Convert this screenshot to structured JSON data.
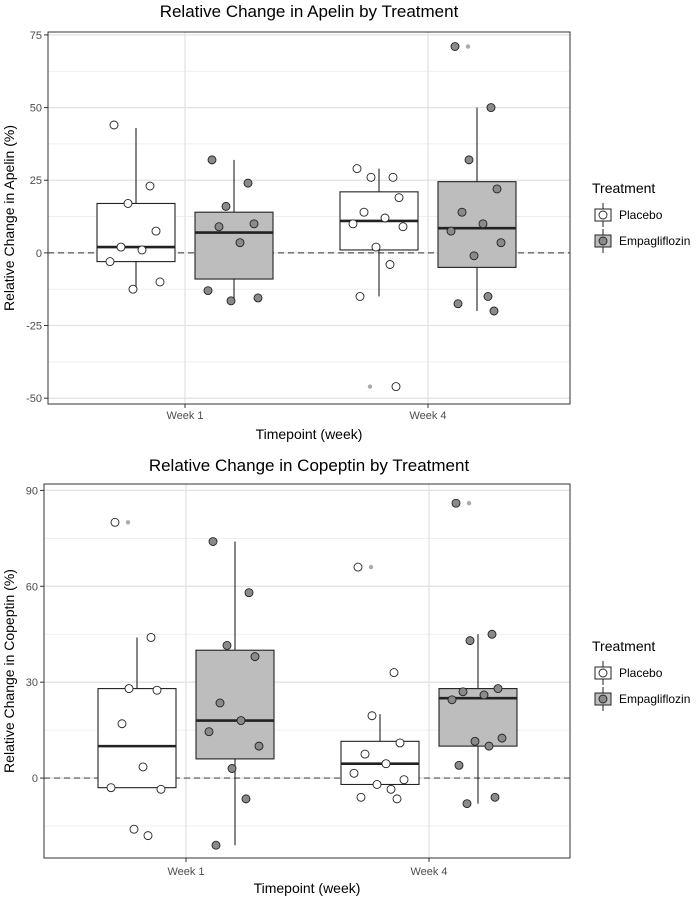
{
  "chart_data": [
    {
      "type": "boxplot",
      "title": "Relative Change in Apelin by Treatment",
      "xlabel": "Timepoint (week)",
      "ylabel": "Relative Change in Apelin (%)",
      "categories": [
        "Week 1",
        "Week 4"
      ],
      "ylim": [
        -52,
        76
      ],
      "yticks": [
        -50,
        -25,
        0,
        25,
        50,
        75
      ],
      "reference_line": 0,
      "legend": {
        "title": "Treatment",
        "entries": [
          "Placebo",
          "Empagliflozin"
        ]
      },
      "series": [
        {
          "name": "Placebo",
          "color": "#ffffff",
          "boxes": [
            {
              "category": "Week 1",
              "whisker_low": -13,
              "q1": -3,
              "median": 2,
              "q3": 17,
              "whisker_high": 43,
              "outliers": []
            },
            {
              "category": "Week 4",
              "whisker_low": -15,
              "q1": 1,
              "median": 11,
              "q3": 21,
              "whisker_high": 29,
              "outliers": [
                -46
              ]
            }
          ],
          "points": [
            {
              "category": "Week 1",
              "values": [
                44,
                23,
                17,
                7.5,
                2,
                1,
                -3,
                -10,
                -12.5
              ]
            },
            {
              "category": "Week 4",
              "values": [
                29,
                26,
                26,
                19,
                14,
                12,
                10,
                9,
                2,
                -4,
                -15,
                -46
              ]
            }
          ]
        },
        {
          "name": "Empagliflozin",
          "color": "#bdbdbd",
          "boxes": [
            {
              "category": "Week 1",
              "whisker_low": -16,
              "q1": -9,
              "median": 7,
              "q3": 14,
              "whisker_high": 32,
              "outliers": []
            },
            {
              "category": "Week 4",
              "whisker_low": -20,
              "q1": -5,
              "median": 8.5,
              "q3": 24.5,
              "whisker_high": 50,
              "outliers": [
                71
              ]
            }
          ],
          "points": [
            {
              "category": "Week 1",
              "values": [
                32,
                24,
                16,
                10,
                9,
                3.5,
                -13,
                -15.5,
                -16.5
              ]
            },
            {
              "category": "Week 4",
              "values": [
                71,
                50,
                32,
                22,
                14,
                10,
                7.5,
                3.5,
                -1,
                -15,
                -17.5,
                -20
              ]
            }
          ]
        }
      ]
    },
    {
      "type": "boxplot",
      "title": "Relative Change in Copeptin by Treatment",
      "xlabel": "Timepoint (week)",
      "ylabel": "Relative Change in Copeptin (%)",
      "categories": [
        "Week 1",
        "Week 4"
      ],
      "ylim": [
        -25,
        92
      ],
      "yticks": [
        0,
        30,
        60,
        90
      ],
      "reference_line": 0,
      "legend": {
        "title": "Treatment",
        "entries": [
          "Placebo",
          "Empagliflozin"
        ]
      },
      "series": [
        {
          "name": "Placebo",
          "color": "#ffffff",
          "boxes": [
            {
              "category": "Week 1",
              "whisker_low": -3,
              "q1": -3,
              "median": 10,
              "q3": 28,
              "whisker_high": 44,
              "outliers": [
                80
              ]
            },
            {
              "category": "Week 4",
              "whisker_low": -2,
              "q1": -2,
              "median": 4.5,
              "q3": 11.5,
              "whisker_high": 20,
              "outliers": [
                66
              ]
            }
          ],
          "points": [
            {
              "category": "Week 1",
              "values": [
                80,
                44,
                28,
                27.5,
                17,
                3.5,
                -3,
                -3.5,
                -16,
                -18
              ]
            },
            {
              "category": "Week 4",
              "values": [
                66,
                33,
                19.5,
                11,
                7.5,
                4.5,
                1.5,
                -0.5,
                -2,
                -3.5,
                -6,
                -6.5
              ]
            }
          ]
        },
        {
          "name": "Empagliflozin",
          "color": "#bdbdbd",
          "boxes": [
            {
              "category": "Week 1",
              "whisker_low": -21,
              "q1": 6,
              "median": 18,
              "q3": 40,
              "whisker_high": 74,
              "outliers": []
            },
            {
              "category": "Week 4",
              "whisker_low": -8,
              "q1": 10,
              "median": 25,
              "q3": 28,
              "whisker_high": 45,
              "outliers": [
                86
              ]
            }
          ],
          "points": [
            {
              "category": "Week 1",
              "values": [
                74,
                58,
                41.5,
                38,
                23.5,
                18,
                14.5,
                10,
                3,
                -6.5,
                -21
              ]
            },
            {
              "category": "Week 4",
              "values": [
                86,
                45,
                43,
                28,
                27,
                26,
                24.5,
                12.5,
                11.5,
                10,
                4,
                -6,
                -8
              ]
            }
          ]
        }
      ]
    }
  ]
}
